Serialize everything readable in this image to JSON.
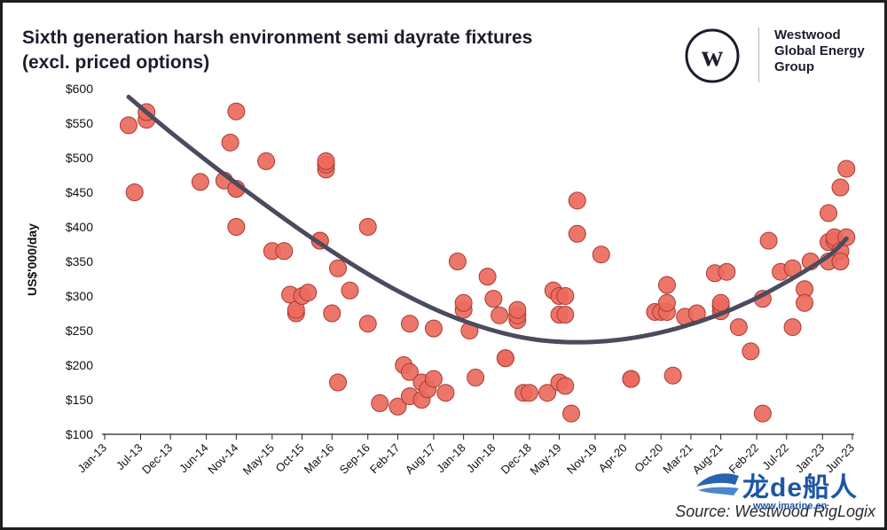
{
  "title": {
    "line1": "Sixth generation harsh environment semi dayrate fixtures",
    "line2": "(excl. priced options)"
  },
  "brand": {
    "logo_letter": "w",
    "line1": "Westwood",
    "line2": "Global Energy",
    "line3": "Group"
  },
  "source": "Source: Westwood RigLogix",
  "watermark": {
    "brand": "龙de船人",
    "url": "www.imarine.cn"
  },
  "colors": {
    "point_fill": "#ec6a5d",
    "point_stroke": "#a83a31",
    "trend": "#4c4a5e",
    "axis": "#222222"
  },
  "chart_data": {
    "type": "scatter",
    "title": "Sixth generation harsh environment semi dayrate fixtures (excl. priced options)",
    "xlabel": "",
    "ylabel": "US$'000/day",
    "ylim": [
      100,
      600
    ],
    "y_ticks": [
      100,
      150,
      200,
      250,
      300,
      350,
      400,
      450,
      500,
      550,
      600
    ],
    "y_tick_labels": [
      "$100",
      "$150",
      "$200",
      "$250",
      "$300",
      "$350",
      "$400",
      "$450",
      "$500",
      "$550",
      "$600"
    ],
    "x_ticks": [
      "Jan-13",
      "Jul-13",
      "Dec-13",
      "Jun-14",
      "Nov-14",
      "May-15",
      "Oct-15",
      "Mar-16",
      "Sep-16",
      "Feb-17",
      "Aug-17",
      "Jan-18",
      "Jun-18",
      "Dec-18",
      "May-19",
      "Nov-19",
      "Apr-20",
      "Oct-20",
      "Mar-21",
      "Aug-21",
      "Feb-22",
      "Jul-22",
      "Jan-23",
      "Jun-23"
    ],
    "xlim": [
      "2013-01",
      "2023-06"
    ],
    "grid": false,
    "legend": "none",
    "points": [
      {
        "x": "2013-05",
        "y": 547
      },
      {
        "x": "2013-06",
        "y": 450
      },
      {
        "x": "2013-08",
        "y": 555
      },
      {
        "x": "2013-08",
        "y": 566
      },
      {
        "x": "2014-05",
        "y": 465
      },
      {
        "x": "2014-09",
        "y": 467
      },
      {
        "x": "2014-10",
        "y": 522
      },
      {
        "x": "2014-11",
        "y": 567
      },
      {
        "x": "2014-11",
        "y": 455
      },
      {
        "x": "2014-11",
        "y": 455
      },
      {
        "x": "2014-11",
        "y": 400
      },
      {
        "x": "2015-04",
        "y": 495
      },
      {
        "x": "2015-05",
        "y": 365
      },
      {
        "x": "2015-07",
        "y": 365
      },
      {
        "x": "2015-08",
        "y": 302
      },
      {
        "x": "2015-09",
        "y": 275
      },
      {
        "x": "2015-09",
        "y": 280
      },
      {
        "x": "2015-10",
        "y": 300
      },
      {
        "x": "2015-11",
        "y": 305
      },
      {
        "x": "2016-01",
        "y": 380
      },
      {
        "x": "2016-01",
        "y": 380
      },
      {
        "x": "2016-02",
        "y": 483
      },
      {
        "x": "2016-02",
        "y": 490
      },
      {
        "x": "2016-02",
        "y": 495
      },
      {
        "x": "2016-03",
        "y": 275
      },
      {
        "x": "2016-04",
        "y": 340
      },
      {
        "x": "2016-04",
        "y": 175
      },
      {
        "x": "2016-06",
        "y": 308
      },
      {
        "x": "2016-09",
        "y": 400
      },
      {
        "x": "2016-09",
        "y": 260
      },
      {
        "x": "2016-11",
        "y": 145
      },
      {
        "x": "2017-02",
        "y": 140
      },
      {
        "x": "2017-03",
        "y": 200
      },
      {
        "x": "2017-04",
        "y": 190
      },
      {
        "x": "2017-04",
        "y": 260
      },
      {
        "x": "2017-04",
        "y": 155
      },
      {
        "x": "2017-06",
        "y": 150
      },
      {
        "x": "2017-06",
        "y": 175
      },
      {
        "x": "2017-07",
        "y": 165
      },
      {
        "x": "2017-08",
        "y": 253
      },
      {
        "x": "2017-08",
        "y": 180
      },
      {
        "x": "2017-10",
        "y": 160
      },
      {
        "x": "2017-12",
        "y": 350
      },
      {
        "x": "2018-01",
        "y": 280
      },
      {
        "x": "2018-01",
        "y": 290
      },
      {
        "x": "2018-02",
        "y": 250
      },
      {
        "x": "2018-03",
        "y": 182
      },
      {
        "x": "2018-05",
        "y": 328
      },
      {
        "x": "2018-06",
        "y": 296
      },
      {
        "x": "2018-07",
        "y": 272
      },
      {
        "x": "2018-08",
        "y": 210
      },
      {
        "x": "2018-08",
        "y": 210
      },
      {
        "x": "2018-10",
        "y": 265
      },
      {
        "x": "2018-10",
        "y": 272
      },
      {
        "x": "2018-10",
        "y": 280
      },
      {
        "x": "2018-11",
        "y": 160
      },
      {
        "x": "2018-12",
        "y": 160
      },
      {
        "x": "2019-03",
        "y": 160
      },
      {
        "x": "2019-04",
        "y": 308
      },
      {
        "x": "2019-05",
        "y": 300
      },
      {
        "x": "2019-05",
        "y": 273
      },
      {
        "x": "2019-05",
        "y": 175
      },
      {
        "x": "2019-06",
        "y": 170
      },
      {
        "x": "2019-06",
        "y": 300
      },
      {
        "x": "2019-06",
        "y": 273
      },
      {
        "x": "2019-07",
        "y": 130
      },
      {
        "x": "2019-08",
        "y": 438
      },
      {
        "x": "2019-08",
        "y": 390
      },
      {
        "x": "2019-12",
        "y": 360
      },
      {
        "x": "2020-05",
        "y": 180
      },
      {
        "x": "2020-05",
        "y": 180
      },
      {
        "x": "2020-09",
        "y": 277
      },
      {
        "x": "2020-10",
        "y": 277
      },
      {
        "x": "2020-11",
        "y": 277
      },
      {
        "x": "2020-11",
        "y": 290
      },
      {
        "x": "2020-11",
        "y": 316
      },
      {
        "x": "2020-12",
        "y": 185
      },
      {
        "x": "2021-02",
        "y": 270
      },
      {
        "x": "2021-04",
        "y": 275
      },
      {
        "x": "2021-07",
        "y": 333
      },
      {
        "x": "2021-08",
        "y": 278
      },
      {
        "x": "2021-08",
        "y": 285
      },
      {
        "x": "2021-08",
        "y": 290
      },
      {
        "x": "2021-09",
        "y": 335
      },
      {
        "x": "2021-11",
        "y": 255
      },
      {
        "x": "2022-01",
        "y": 220
      },
      {
        "x": "2022-03",
        "y": 130
      },
      {
        "x": "2022-03",
        "y": 296
      },
      {
        "x": "2022-04",
        "y": 380
      },
      {
        "x": "2022-06",
        "y": 335
      },
      {
        "x": "2022-08",
        "y": 255
      },
      {
        "x": "2022-08",
        "y": 340
      },
      {
        "x": "2022-10",
        "y": 310
      },
      {
        "x": "2022-10",
        "y": 290
      },
      {
        "x": "2022-11",
        "y": 350
      },
      {
        "x": "2023-02",
        "y": 378
      },
      {
        "x": "2023-02",
        "y": 420
      },
      {
        "x": "2023-02",
        "y": 350
      },
      {
        "x": "2023-03",
        "y": 380
      },
      {
        "x": "2023-03",
        "y": 385
      },
      {
        "x": "2023-04",
        "y": 365
      },
      {
        "x": "2023-04",
        "y": 350
      },
      {
        "x": "2023-04",
        "y": 457
      },
      {
        "x": "2023-05",
        "y": 385
      },
      {
        "x": "2023-05",
        "y": 484
      }
    ],
    "trend_line": {
      "type": "polynomial",
      "x": [
        "2013-05",
        "2014-01",
        "2015-01",
        "2016-01",
        "2017-01",
        "2018-01",
        "2019-01",
        "2020-01",
        "2021-01",
        "2022-01",
        "2023-01",
        "2023-05"
      ],
      "y": [
        588,
        530,
        450,
        376,
        312,
        264,
        237,
        235,
        254,
        293,
        352,
        383
      ]
    }
  }
}
